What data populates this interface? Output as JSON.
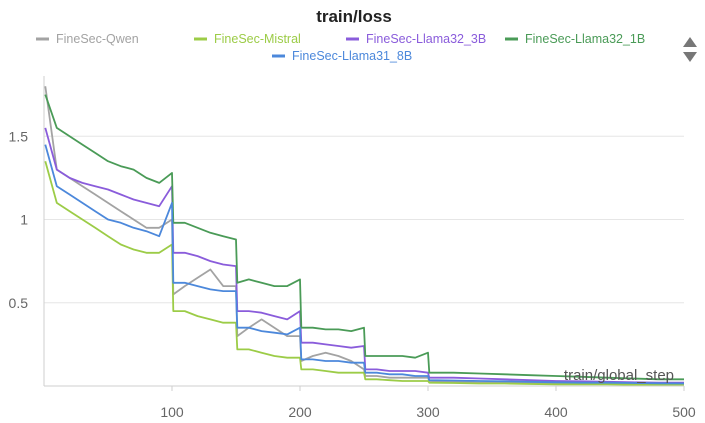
{
  "chart_data": {
    "type": "line",
    "title": "train/loss",
    "xlabel": "train/global_step",
    "ylabel": "",
    "xlim": [
      0,
      500
    ],
    "ylim": [
      0,
      1.85
    ],
    "xticks": [
      100,
      200,
      300,
      400,
      500
    ],
    "yticks": [
      0.5,
      1,
      1.5
    ],
    "ytick_labels": [
      "0.5",
      "1",
      "1.5"
    ],
    "grid": true,
    "legend_position": "top",
    "series": [
      {
        "name": "FineSec-Qwen",
        "color": "#a3a3a3",
        "x": [
          1,
          10,
          20,
          30,
          40,
          50,
          60,
          70,
          80,
          90,
          100,
          101,
          110,
          120,
          130,
          140,
          150,
          151,
          160,
          170,
          180,
          190,
          200,
          201,
          210,
          220,
          230,
          240,
          250,
          251,
          260,
          270,
          280,
          290,
          300,
          301,
          320,
          340,
          360,
          380,
          400,
          420,
          440,
          460,
          480,
          500
        ],
        "y": [
          1.8,
          1.3,
          1.25,
          1.2,
          1.15,
          1.1,
          1.05,
          1.0,
          0.95,
          0.95,
          1.0,
          0.55,
          0.6,
          0.65,
          0.7,
          0.6,
          0.6,
          0.3,
          0.35,
          0.4,
          0.35,
          0.3,
          0.3,
          0.15,
          0.18,
          0.2,
          0.18,
          0.15,
          0.1,
          0.06,
          0.06,
          0.05,
          0.05,
          0.05,
          0.05,
          0.03,
          0.025,
          0.02,
          0.02,
          0.018,
          0.015,
          0.015,
          0.012,
          0.012,
          0.01,
          0.01
        ]
      },
      {
        "name": "FineSec-Mistral",
        "color": "#9ccc47",
        "x": [
          1,
          10,
          20,
          30,
          40,
          50,
          60,
          70,
          80,
          90,
          100,
          101,
          110,
          120,
          130,
          140,
          150,
          151,
          160,
          170,
          180,
          190,
          200,
          201,
          210,
          220,
          230,
          240,
          250,
          251,
          260,
          270,
          280,
          290,
          300,
          301,
          320,
          340,
          360,
          380,
          400,
          420,
          440,
          460,
          480,
          500
        ],
        "y": [
          1.35,
          1.1,
          1.05,
          1.0,
          0.95,
          0.9,
          0.85,
          0.82,
          0.8,
          0.8,
          0.85,
          0.45,
          0.45,
          0.42,
          0.4,
          0.38,
          0.38,
          0.22,
          0.22,
          0.2,
          0.18,
          0.17,
          0.17,
          0.1,
          0.1,
          0.09,
          0.08,
          0.08,
          0.08,
          0.04,
          0.04,
          0.035,
          0.03,
          0.03,
          0.03,
          0.02,
          0.018,
          0.015,
          0.015,
          0.012,
          0.01,
          0.01,
          0.01,
          0.008,
          0.008,
          0.008
        ]
      },
      {
        "name": "FineSec-Llama32_3B",
        "color": "#8a5cdb",
        "x": [
          1,
          10,
          20,
          30,
          40,
          50,
          60,
          70,
          80,
          90,
          100,
          101,
          110,
          120,
          130,
          140,
          150,
          151,
          160,
          170,
          180,
          190,
          200,
          201,
          210,
          220,
          230,
          240,
          250,
          251,
          260,
          270,
          280,
          290,
          300,
          301,
          320,
          340,
          360,
          380,
          400,
          420,
          440,
          460,
          480,
          500
        ],
        "y": [
          1.55,
          1.3,
          1.25,
          1.22,
          1.2,
          1.18,
          1.15,
          1.12,
          1.1,
          1.08,
          1.2,
          0.8,
          0.8,
          0.78,
          0.75,
          0.73,
          0.72,
          0.45,
          0.45,
          0.44,
          0.42,
          0.4,
          0.45,
          0.26,
          0.26,
          0.25,
          0.24,
          0.23,
          0.24,
          0.1,
          0.1,
          0.09,
          0.09,
          0.09,
          0.08,
          0.05,
          0.05,
          0.045,
          0.04,
          0.035,
          0.03,
          0.028,
          0.025,
          0.022,
          0.02,
          0.02
        ]
      },
      {
        "name": "FineSec-Llama32_1B",
        "color": "#4a9b57",
        "x": [
          1,
          10,
          20,
          30,
          40,
          50,
          60,
          70,
          80,
          90,
          100,
          101,
          110,
          120,
          130,
          140,
          150,
          151,
          160,
          170,
          180,
          190,
          200,
          201,
          210,
          220,
          230,
          240,
          250,
          251,
          260,
          270,
          280,
          290,
          300,
          301,
          320,
          340,
          360,
          380,
          400,
          420,
          440,
          460,
          480,
          500
        ],
        "y": [
          1.75,
          1.55,
          1.5,
          1.45,
          1.4,
          1.35,
          1.32,
          1.3,
          1.25,
          1.22,
          1.28,
          0.98,
          0.98,
          0.95,
          0.92,
          0.9,
          0.88,
          0.62,
          0.64,
          0.62,
          0.6,
          0.6,
          0.64,
          0.35,
          0.35,
          0.34,
          0.34,
          0.33,
          0.35,
          0.18,
          0.18,
          0.18,
          0.18,
          0.17,
          0.2,
          0.08,
          0.08,
          0.075,
          0.07,
          0.065,
          0.06,
          0.055,
          0.05,
          0.045,
          0.04,
          0.04
        ]
      },
      {
        "name": "FineSec-Llama31_8B",
        "color": "#4c88db",
        "x": [
          1,
          10,
          20,
          30,
          40,
          50,
          60,
          70,
          80,
          90,
          100,
          101,
          110,
          120,
          130,
          140,
          150,
          151,
          160,
          170,
          180,
          190,
          200,
          201,
          210,
          220,
          230,
          240,
          250,
          251,
          260,
          270,
          280,
          290,
          300,
          301,
          320,
          340,
          360,
          380,
          400,
          420,
          440,
          460,
          480,
          500
        ],
        "y": [
          1.45,
          1.2,
          1.15,
          1.1,
          1.05,
          1.0,
          0.98,
          0.95,
          0.93,
          0.9,
          1.1,
          0.62,
          0.62,
          0.6,
          0.58,
          0.57,
          0.57,
          0.35,
          0.35,
          0.33,
          0.32,
          0.31,
          0.35,
          0.16,
          0.16,
          0.15,
          0.15,
          0.14,
          0.14,
          0.08,
          0.08,
          0.07,
          0.07,
          0.06,
          0.06,
          0.035,
          0.033,
          0.03,
          0.028,
          0.025,
          0.022,
          0.02,
          0.02,
          0.018,
          0.016,
          0.015
        ]
      }
    ]
  }
}
